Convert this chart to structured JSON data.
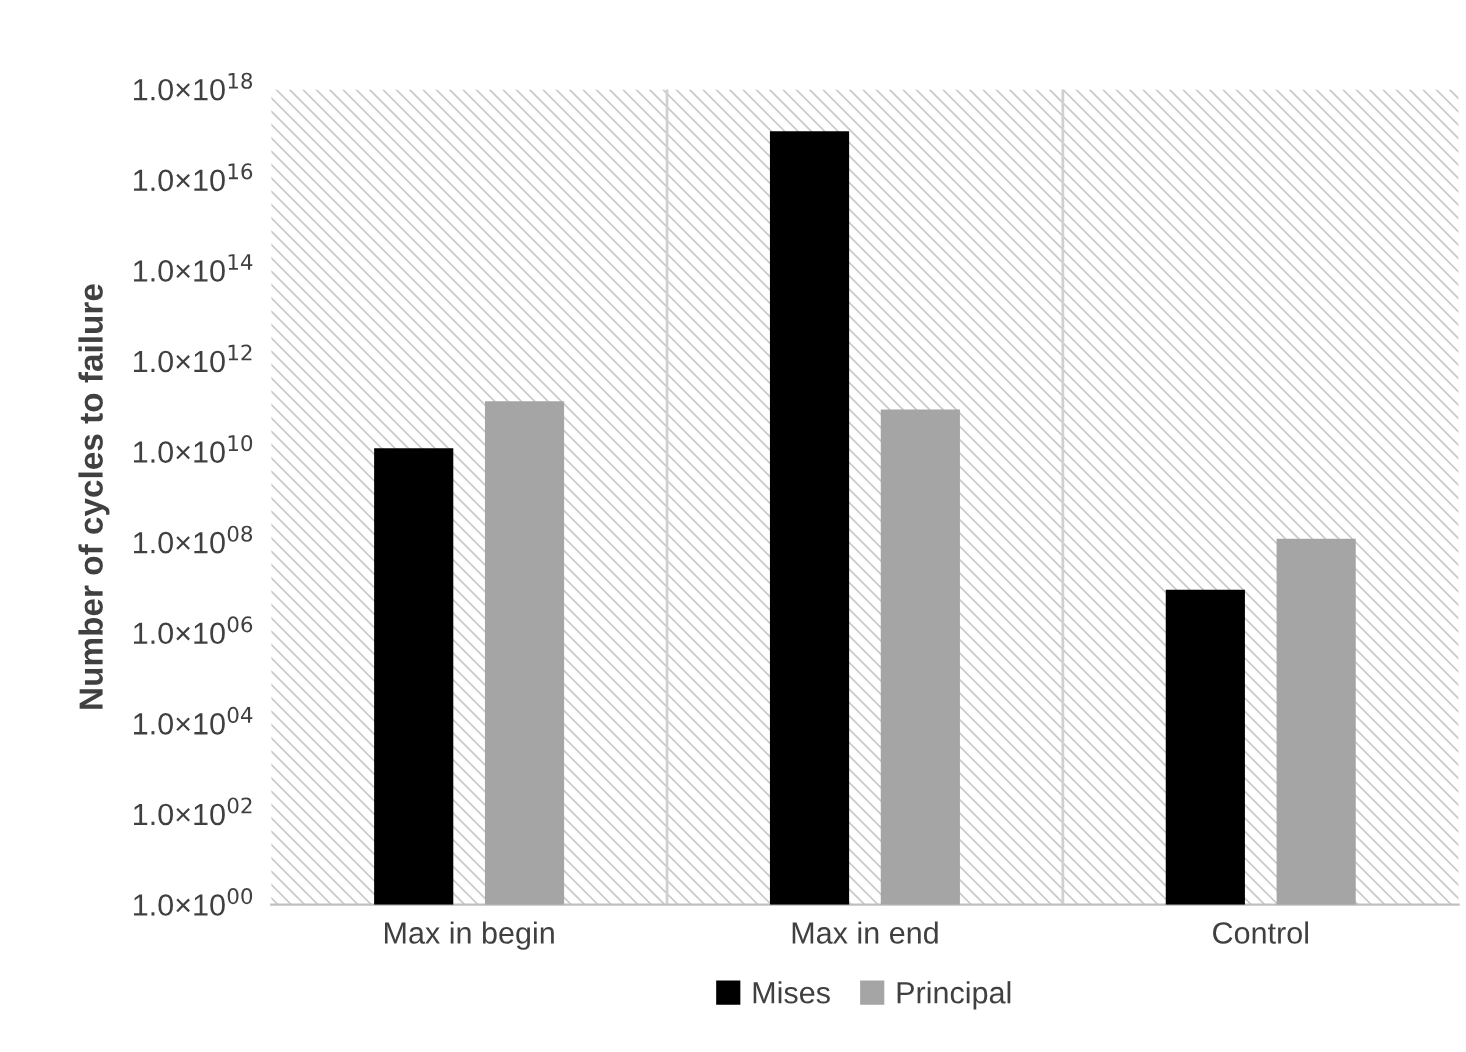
{
  "chart_data": {
    "type": "bar",
    "ylabel": "Number of cycles to failure",
    "categories": [
      "Max in begin",
      "Max in end",
      "Control"
    ],
    "series": [
      {
        "name": "Mises",
        "color": "#000000",
        "values": [
          12000000000.0,
          1.2e+17,
          9000000.0
        ]
      },
      {
        "name": "Principal",
        "color": "#a5a5a5",
        "values": [
          130000000000.0,
          86000000000.0,
          120000000.0
        ]
      }
    ],
    "log": "y",
    "ylim": [
      1,
      1e+18
    ],
    "yticks": [
      {
        "value": 1,
        "label": "1.0×10$^{00}$"
      },
      {
        "value": 100.0,
        "label": "1.0×10$^{02}$"
      },
      {
        "value": 10000.0,
        "label": "1.0×10$^{04}$"
      },
      {
        "value": 1000000.0,
        "label": "1.0×10$^{06}$"
      },
      {
        "value": 100000000.0,
        "label": "1.0×10$^{08}$"
      },
      {
        "value": 10000000000.0,
        "label": "1.0×10$^{10}$"
      },
      {
        "value": 1000000000000.0,
        "label": "1.0×10$^{12}$"
      },
      {
        "value": 100000000000000.0,
        "label": "1.0×10$^{14}$"
      },
      {
        "value": 1e+16,
        "label": "1.0×10$^{16}$"
      },
      {
        "value": 1e+18,
        "label": "1.0×10$^{18}$"
      }
    ],
    "grid": "x",
    "legend": "bottom"
  }
}
